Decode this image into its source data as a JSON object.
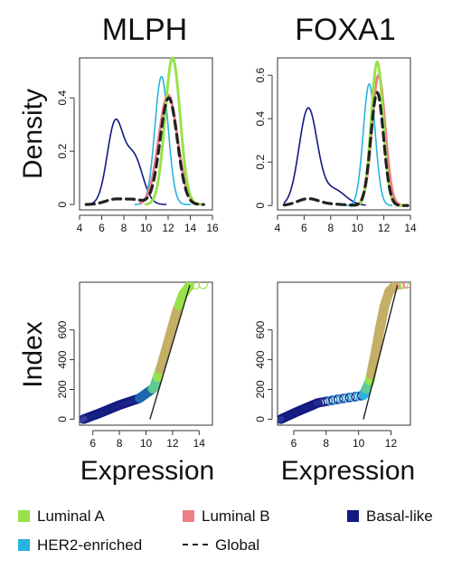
{
  "colors": {
    "luminal_a": "#99e24a",
    "luminal_b": "#ef7e86",
    "basal_like": "#121a82",
    "her2": "#27b3dd",
    "global": "#222222",
    "fit_line": "#222222"
  },
  "axes_labels": {
    "density": "Density",
    "index": "Index",
    "expression": "Expression"
  },
  "legend": [
    {
      "key": "luminal_a",
      "label": "Luminal A",
      "style": "swatch"
    },
    {
      "key": "luminal_b",
      "label": "Luminal B",
      "style": "swatch"
    },
    {
      "key": "basal_like",
      "label": "Basal-like",
      "style": "swatch"
    },
    {
      "key": "her2",
      "label": "HER2-enriched",
      "style": "swatch"
    },
    {
      "key": "global",
      "label": "Global",
      "style": "dash"
    }
  ],
  "chart_data": [
    {
      "type": "line",
      "gene": "MLPH",
      "title": "MLPH",
      "ylabel": "Density",
      "xlim": [
        4,
        16
      ],
      "ylim": [
        -0.02,
        0.55
      ],
      "xticks": [
        4,
        6,
        8,
        10,
        12,
        14,
        16
      ],
      "yticks": [
        0.0,
        0.2,
        0.4
      ],
      "series": [
        {
          "name": "Luminal A",
          "key": "luminal_a",
          "gauss": [
            [
              1.0,
              12.4,
              0.68
            ]
          ],
          "range": [
            10,
            15.2
          ]
        },
        {
          "name": "Luminal B",
          "key": "luminal_b",
          "gauss": [
            [
              1.0,
              12.0,
              0.85
            ]
          ],
          "range": [
            9.5,
            15.0
          ]
        },
        {
          "name": "Basal-like",
          "key": "basal_like",
          "gauss": [
            [
              0.27,
              7.2,
              0.72
            ],
            [
              0.16,
              8.9,
              0.8
            ]
          ],
          "range": [
            4.6,
            11.8
          ]
        },
        {
          "name": "HER2-enriched",
          "key": "her2",
          "gauss": [
            [
              0.86,
              11.4,
              0.6
            ]
          ],
          "range": [
            9,
            14
          ]
        },
        {
          "name": "Global",
          "key": "global",
          "gauss": [
            [
              0.035,
              7.2,
              0.9
            ],
            [
              0.03,
              9.0,
              0.8
            ],
            [
              0.72,
              12.05,
              0.78
            ]
          ],
          "range": [
            4.6,
            15.2
          ]
        }
      ],
      "peaks": {
        "Luminal A": 0.55,
        "Luminal B": 0.41,
        "Basal-like": 0.32,
        "HER2-enriched": 0.48,
        "Global": 0.4
      }
    },
    {
      "type": "line",
      "gene": "FOXA1",
      "title": "FOXA1",
      "ylabel": "",
      "xlim": [
        4,
        14
      ],
      "ylim": [
        -0.02,
        0.68
      ],
      "xticks": [
        4,
        6,
        8,
        10,
        12,
        14
      ],
      "yticks": [
        0.0,
        0.2,
        0.4,
        0.6
      ],
      "series": [
        {
          "name": "Luminal A",
          "key": "luminal_a",
          "gauss": [
            [
              1.0,
              11.5,
              0.45
            ]
          ],
          "range": [
            9.5,
            13.8
          ]
        },
        {
          "name": "Luminal B",
          "key": "luminal_b",
          "gauss": [
            [
              1.0,
              11.6,
              0.5
            ]
          ],
          "range": [
            9.5,
            13.8
          ]
        },
        {
          "name": "Basal-like",
          "key": "basal_like",
          "gauss": [
            [
              0.42,
              6.3,
              0.68
            ],
            [
              0.07,
              8.2,
              0.9
            ]
          ],
          "range": [
            4.5,
            10.6
          ]
        },
        {
          "name": "HER2-enriched",
          "key": "her2",
          "gauss": [
            [
              1.0,
              10.9,
              0.45
            ]
          ],
          "range": [
            9.2,
            12.6
          ]
        },
        {
          "name": "Global",
          "key": "global",
          "gauss": [
            [
              0.055,
              6.3,
              0.8
            ],
            [
              0.01,
              8.2,
              0.9
            ],
            [
              0.92,
              11.5,
              0.48
            ]
          ],
          "range": [
            4.5,
            13.8
          ]
        }
      ],
      "peaks": {
        "Luminal A": 0.66,
        "Luminal B": 0.6,
        "Basal-like": 0.45,
        "HER2-enriched": 0.56,
        "Global": 0.52
      }
    },
    {
      "type": "scatter",
      "gene": "MLPH",
      "xlabel": "Expression",
      "ylabel": "Index",
      "xlim": [
        5,
        15
      ],
      "ylim": [
        -40,
        920
      ],
      "xticks": [
        6,
        8,
        10,
        12,
        14
      ],
      "yticks": [
        0,
        200,
        400,
        600
      ],
      "quantile_curve": [
        [
          5.3,
          0
        ],
        [
          6.5,
          40
        ],
        [
          8.0,
          95
        ],
        [
          9.5,
          140
        ],
        [
          10.6,
          210
        ],
        [
          11.2,
          370
        ],
        [
          11.8,
          560
        ],
        [
          12.3,
          720
        ],
        [
          12.8,
          840
        ],
        [
          13.3,
          900
        ],
        [
          14.3,
          905
        ]
      ],
      "group_bands": [
        {
          "key": "basal_like",
          "from": 0,
          "to": 200
        },
        {
          "key": "her2",
          "from": 140,
          "to": 280
        },
        {
          "key": "luminal_a",
          "from": 200,
          "to": 905
        },
        {
          "key": "luminal_b",
          "from": 330,
          "to": 760
        }
      ],
      "fit_line": [
        [
          10.3,
          0
        ],
        [
          13.3,
          900
        ]
      ]
    },
    {
      "type": "scatter",
      "gene": "FOXA1",
      "xlabel": "Expression",
      "ylabel": "",
      "xlim": [
        5,
        13.2
      ],
      "ylim": [
        -40,
        920
      ],
      "xticks": [
        6,
        8,
        10,
        12
      ],
      "yticks": [
        0,
        200,
        400,
        600
      ],
      "quantile_curve": [
        [
          5.2,
          0
        ],
        [
          6.2,
          50
        ],
        [
          7.5,
          110
        ],
        [
          8.8,
          135
        ],
        [
          10.3,
          160
        ],
        [
          10.7,
          260
        ],
        [
          11.0,
          420
        ],
        [
          11.3,
          600
        ],
        [
          11.6,
          760
        ],
        [
          11.9,
          860
        ],
        [
          12.3,
          900
        ],
        [
          13.0,
          910
        ]
      ],
      "group_bands": [
        {
          "key": "basal_like",
          "from": 0,
          "to": 160
        },
        {
          "key": "her2",
          "from": 120,
          "to": 260
        },
        {
          "key": "luminal_a",
          "from": 200,
          "to": 910
        },
        {
          "key": "luminal_b",
          "from": 300,
          "to": 910
        }
      ],
      "fit_line": [
        [
          10.3,
          0
        ],
        [
          12.4,
          900
        ]
      ]
    }
  ]
}
